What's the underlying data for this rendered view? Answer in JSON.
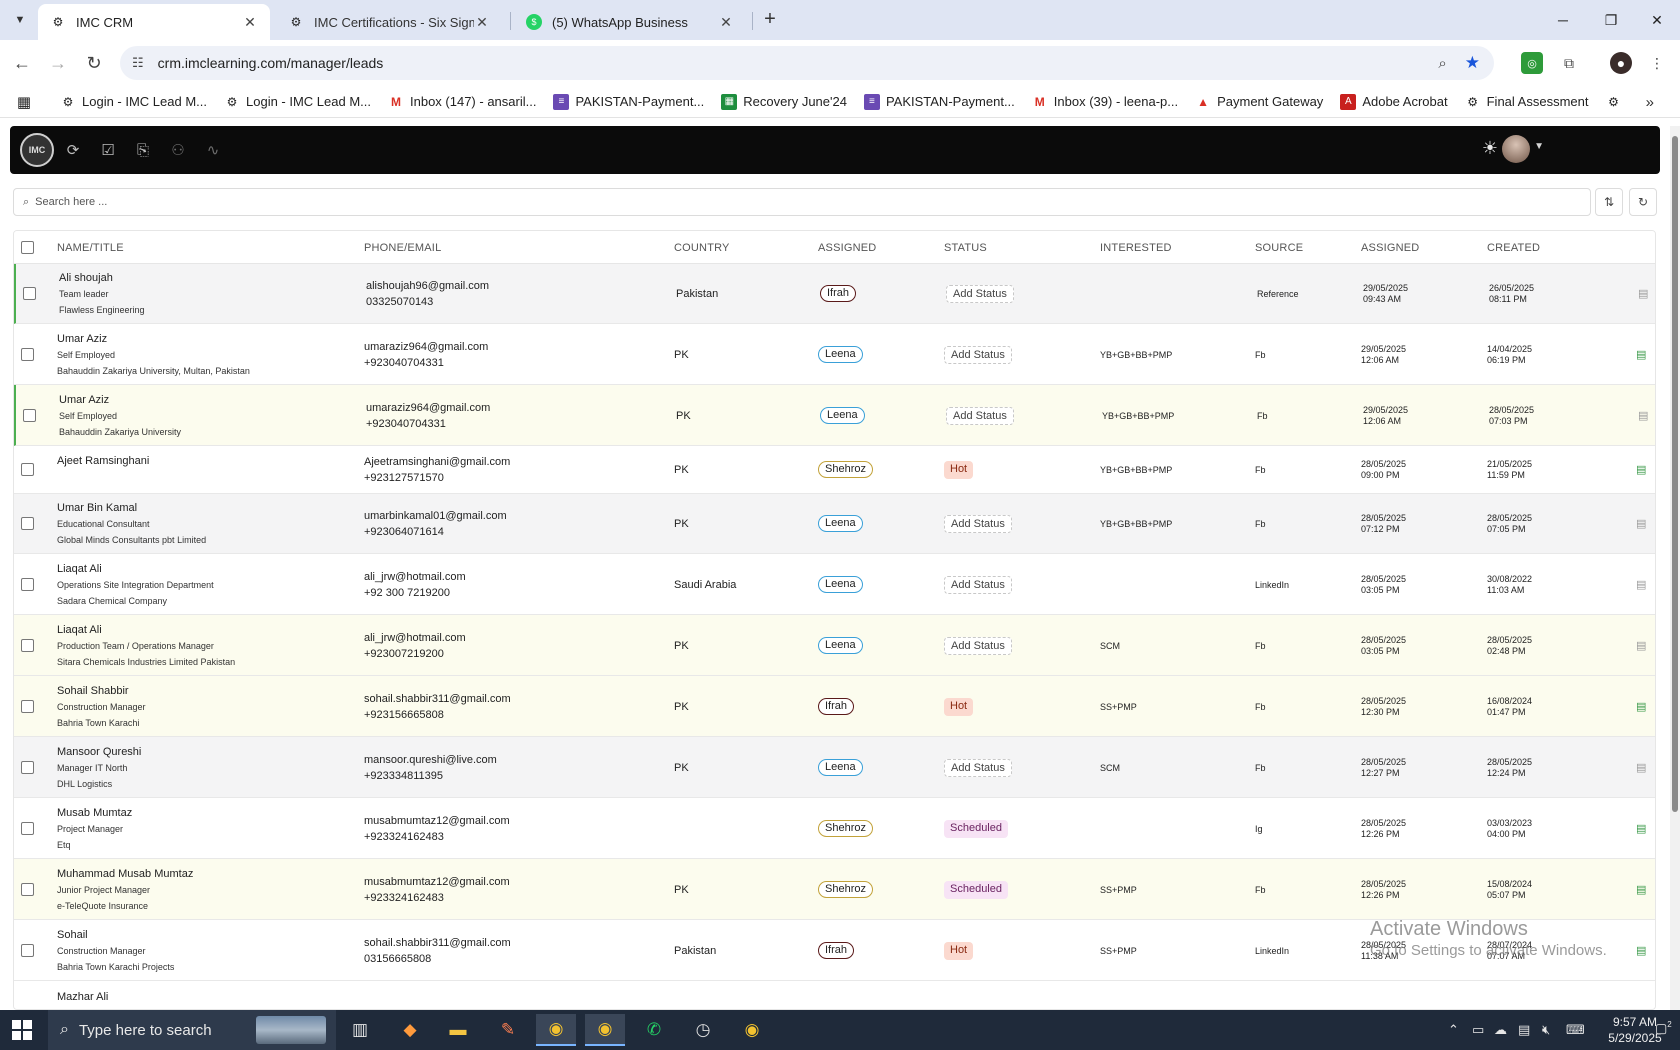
{
  "browser": {
    "tabs": [
      {
        "title": "IMC CRM",
        "active": true
      },
      {
        "title": "IMC Certifications - Six Sigma G",
        "active": false
      },
      {
        "title": "(5) WhatsApp Business",
        "active": false
      }
    ],
    "url": "crm.imclearning.com/manager/leads",
    "bookmarks": [
      "Login - IMC Lead M...",
      "Login - IMC Lead M...",
      "Inbox (147) - ansaril...",
      "PAKISTAN-Payment...",
      "Recovery June'24",
      "PAKISTAN-Payment...",
      "Inbox (39) - leena-p...",
      "Payment Gateway",
      "Adobe Acrobat",
      "Final Assessment"
    ]
  },
  "app": {
    "logo_text": "IMC",
    "search_placeholder": "Search here ..."
  },
  "table": {
    "headers": {
      "name": "NAME/TITLE",
      "phone": "PHONE/EMAIL",
      "country": "COUNTRY",
      "assigned_to": "ASSIGNED",
      "status": "STATUS",
      "interested": "INTERESTED",
      "source": "SOURCE",
      "assigned_at": "ASSIGNED",
      "created": "CREATED"
    },
    "rows": [
      {
        "name": "Ali shoujah",
        "title": "Team leader",
        "org": "Flawless Engineering",
        "email": "alishoujah96@gmail.com",
        "phone": "03325070143",
        "country": "Pakistan",
        "assigned_to": "Ifrah",
        "status": "Add Status",
        "interested": "",
        "source": "Reference",
        "assigned_date": "29/05/2025",
        "assigned_time": "09:43 AM",
        "created_date": "26/05/2025",
        "created_time": "08:11 PM"
      },
      {
        "name": "Umar Aziz",
        "title": "Self Employed",
        "org": "Bahauddin Zakariya University, Multan, Pakistan",
        "email": "umaraziz964@gmail.com",
        "phone": "+923040704331",
        "country": "PK",
        "assigned_to": "Leena",
        "status": "Add Status",
        "interested": "YB+GB+BB+PMP",
        "source": "Fb",
        "assigned_date": "29/05/2025",
        "assigned_time": "12:06 AM",
        "created_date": "14/04/2025",
        "created_time": "06:19 PM"
      },
      {
        "name": "Umar Aziz",
        "title": "Self Employed",
        "org": "Bahauddin Zakariya University",
        "email": "umaraziz964@gmail.com",
        "phone": "+923040704331",
        "country": "PK",
        "assigned_to": "Leena",
        "status": "Add Status",
        "interested": "YB+GB+BB+PMP",
        "source": "Fb",
        "assigned_date": "29/05/2025",
        "assigned_time": "12:06 AM",
        "created_date": "28/05/2025",
        "created_time": "07:03 PM"
      },
      {
        "name": "Ajeet Ramsinghani",
        "title": "",
        "org": "",
        "email": "Ajeetramsinghani@gmail.com",
        "phone": "+923127571570",
        "country": "PK",
        "assigned_to": "Shehroz",
        "status": "Hot",
        "interested": "YB+GB+BB+PMP",
        "source": "Fb",
        "assigned_date": "28/05/2025",
        "assigned_time": "09:00 PM",
        "created_date": "21/05/2025",
        "created_time": "11:59 PM"
      },
      {
        "name": "Umar Bin Kamal",
        "title": "Educational Consultant",
        "org": "Global Minds Consultants pbt Limited",
        "email": "umarbinkamal01@gmail.com",
        "phone": "+923064071614",
        "country": "PK",
        "assigned_to": "Leena",
        "status": "Add Status",
        "interested": "YB+GB+BB+PMP",
        "source": "Fb",
        "assigned_date": "28/05/2025",
        "assigned_time": "07:12 PM",
        "created_date": "28/05/2025",
        "created_time": "07:05 PM"
      },
      {
        "name": "Liaqat Ali",
        "title": "Operations Site Integration Department",
        "org": "Sadara Chemical Company",
        "email": "ali_jrw@hotmail.com",
        "phone": "+92 300 7219200",
        "country": "Saudi Arabia",
        "assigned_to": "Leena",
        "status": "Add Status",
        "interested": "",
        "source": "LinkedIn",
        "assigned_date": "28/05/2025",
        "assigned_time": "03:05 PM",
        "created_date": "30/08/2022",
        "created_time": "11:03 AM"
      },
      {
        "name": "Liaqat Ali",
        "title": "Production Team / Operations Manager",
        "org": "Sitara Chemicals Industries Limited Pakistan",
        "email": "ali_jrw@hotmail.com",
        "phone": "+923007219200",
        "country": "PK",
        "assigned_to": "Leena",
        "status": "Add Status",
        "interested": "SCM",
        "source": "Fb",
        "assigned_date": "28/05/2025",
        "assigned_time": "03:05 PM",
        "created_date": "28/05/2025",
        "created_time": "02:48 PM"
      },
      {
        "name": "Sohail Shabbir",
        "title": "Construction Manager",
        "org": "Bahria Town Karachi",
        "email": "sohail.shabbir311@gmail.com",
        "phone": "+923156665808",
        "country": "PK",
        "assigned_to": "Ifrah",
        "status": "Hot",
        "interested": "SS+PMP",
        "source": "Fb",
        "assigned_date": "28/05/2025",
        "assigned_time": "12:30 PM",
        "created_date": "16/08/2024",
        "created_time": "01:47 PM"
      },
      {
        "name": "Mansoor Qureshi",
        "title": "Manager IT North",
        "org": "DHL Logistics",
        "email": "mansoor.qureshi@live.com",
        "phone": "+923334811395",
        "country": "PK",
        "assigned_to": "Leena",
        "status": "Add Status",
        "interested": "SCM",
        "source": "Fb",
        "assigned_date": "28/05/2025",
        "assigned_time": "12:27 PM",
        "created_date": "28/05/2025",
        "created_time": "12:24 PM"
      },
      {
        "name": "Musab Mumtaz",
        "title": "Project Manager",
        "org": "Etq",
        "email": "musabmumtaz12@gmail.com",
        "phone": "+923324162483",
        "country": "",
        "assigned_to": "Shehroz",
        "status": "Scheduled",
        "interested": "",
        "source": "Ig",
        "assigned_date": "28/05/2025",
        "assigned_time": "12:26 PM",
        "created_date": "03/03/2023",
        "created_time": "04:00 PM"
      },
      {
        "name": "Muhammad Musab Mumtaz",
        "title": "Junior Project Manager",
        "org": "e-TeleQuote Insurance",
        "email": "musabmumtaz12@gmail.com",
        "phone": "+923324162483",
        "country": "PK",
        "assigned_to": "Shehroz",
        "status": "Scheduled",
        "interested": "SS+PMP",
        "source": "Fb",
        "assigned_date": "28/05/2025",
        "assigned_time": "12:26 PM",
        "created_date": "15/08/2024",
        "created_time": "05:07 PM"
      },
      {
        "name": "Sohail",
        "title": "Construction Manager",
        "org": "Bahria Town Karachi Projects",
        "email": "sohail.shabbir311@gmail.com",
        "phone": "03156665808",
        "country": "Pakistan",
        "assigned_to": "Ifrah",
        "status": "Hot",
        "interested": "SS+PMP",
        "source": "LinkedIn",
        "assigned_date": "28/05/2025",
        "assigned_time": "11:38 AM",
        "created_date": "28/07/2024",
        "created_time": "07:07 AM"
      },
      {
        "name": "Mazhar Ali",
        "title": "",
        "org": "",
        "email": "",
        "phone": "",
        "country": "",
        "assigned_to": "",
        "status": "",
        "interested": "",
        "source": "",
        "assigned_date": "",
        "assigned_time": "",
        "created_date": "",
        "created_time": ""
      }
    ]
  },
  "watermark": {
    "line1": "Activate Windows",
    "line2": "Go to Settings to activate Windows."
  },
  "taskbar": {
    "search_placeholder": "Type here to search",
    "time": "9:57 AM",
    "date": "5/29/2025",
    "notifications": "2"
  }
}
